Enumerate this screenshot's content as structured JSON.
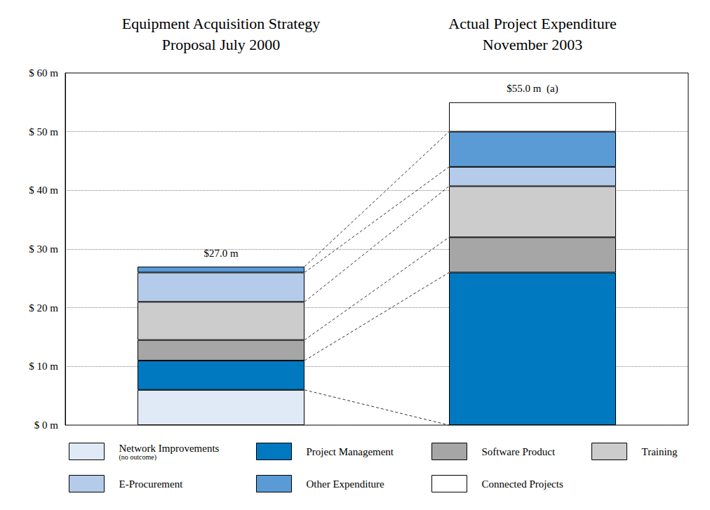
{
  "chart_data": {
    "type": "bar",
    "stacked": true,
    "grid": true,
    "categories": [
      "Equipment Acquisition Strategy\nProposal July 2000",
      "Actual Project Expenditure\nNovember 2003"
    ],
    "series": [
      {
        "name": "Network Improvements",
        "note": "(no outcome)",
        "color": "#e0eaf6",
        "values": [
          6,
          null
        ]
      },
      {
        "name": "Project Management",
        "color": "#0079c1",
        "values": [
          5,
          26
        ]
      },
      {
        "name": "Software Product",
        "color": "#a6a6a6",
        "values": [
          3.5,
          6
        ]
      },
      {
        "name": "Training",
        "color": "#cccccc",
        "values": [
          6.5,
          8.7
        ]
      },
      {
        "name": "E-Procurement",
        "color": "#b4cbe9",
        "values": [
          5,
          3.3
        ]
      },
      {
        "name": "Other Expenditure",
        "color": "#5b9bd5",
        "values": [
          1,
          6
        ]
      },
      {
        "name": "Connected Projects",
        "color": "#ffffff",
        "values": [
          null,
          5
        ]
      }
    ],
    "annotations": [
      {
        "category": 0,
        "text": "$27.0 m"
      },
      {
        "category": 1,
        "text": "$55.0 m  (a)"
      }
    ],
    "ylim": [
      0,
      60
    ],
    "yticks": [
      {
        "value": 0,
        "label": "$ 0 m"
      },
      {
        "value": 10,
        "label": "$ 10 m"
      },
      {
        "value": 20,
        "label": "$ 20 m"
      },
      {
        "value": 30,
        "label": "$ 30 m"
      },
      {
        "value": 40,
        "label": "$ 40 m"
      },
      {
        "value": 50,
        "label": "$ 50 m"
      },
      {
        "value": 60,
        "label": "$ 60 m"
      }
    ]
  }
}
